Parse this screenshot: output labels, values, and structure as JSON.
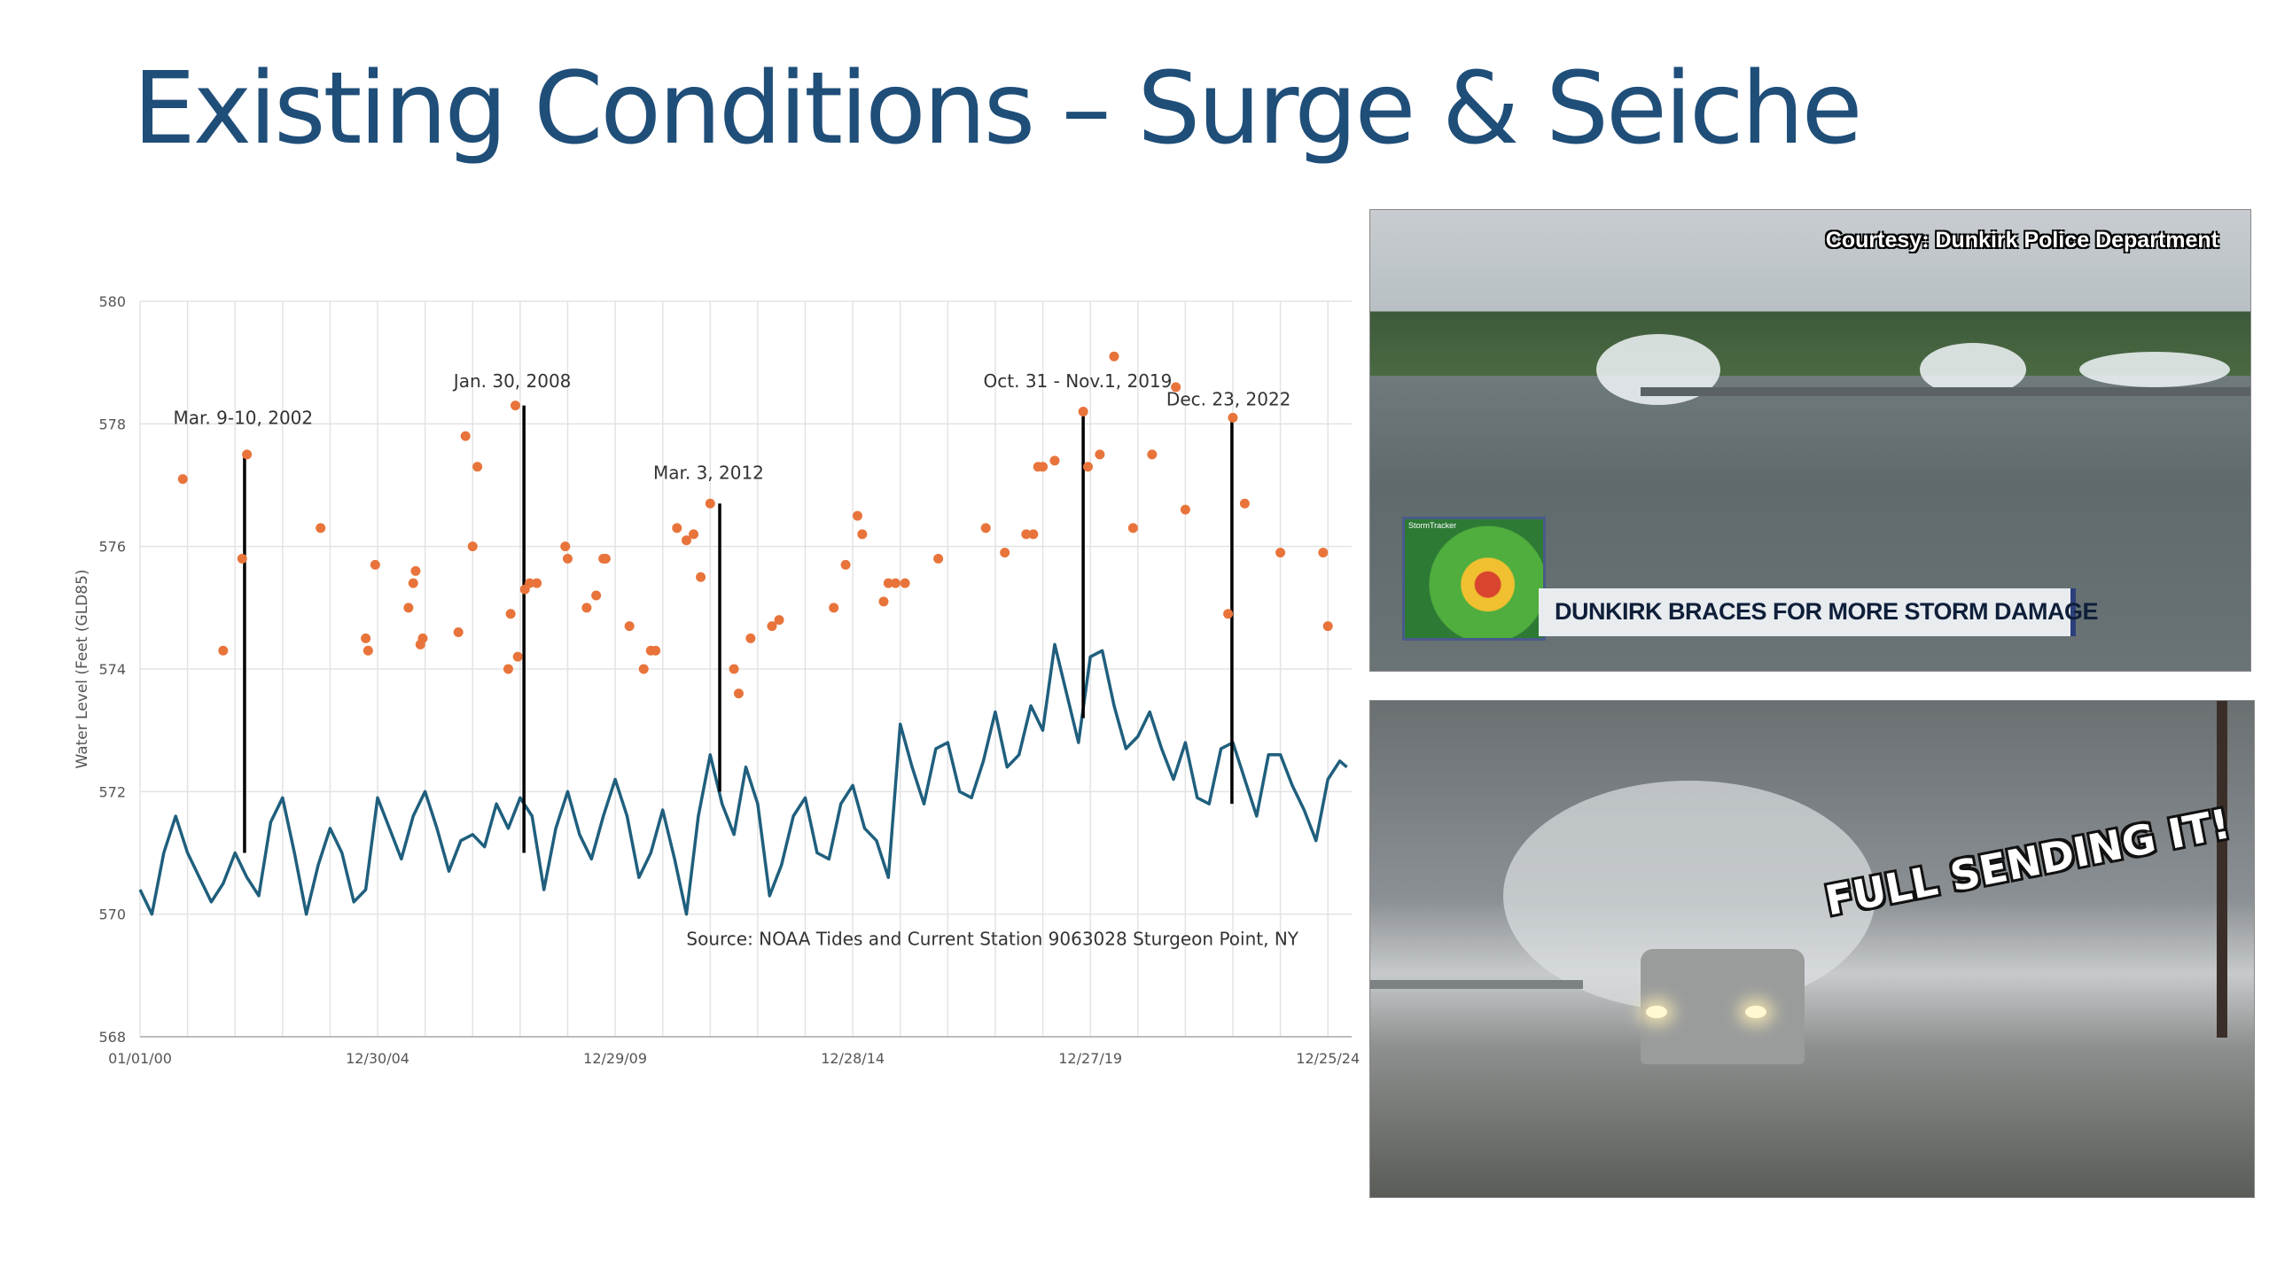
{
  "slide": {
    "title": "Existing Conditions – Surge & Seiche"
  },
  "chart_data": {
    "type": "line",
    "ylabel": "Water Level (Feet (GLD85)",
    "xlabel": "",
    "ylim": [
      568,
      580
    ],
    "yticks": [
      568,
      570,
      572,
      574,
      576,
      578,
      580
    ],
    "x_tick_labels": [
      "01/01/00",
      "12/30/04",
      "12/29/09",
      "12/28/14",
      "12/27/19",
      "12/25/24"
    ],
    "x_tick_years": [
      2000,
      2005,
      2010,
      2015,
      2020,
      2025
    ],
    "xlim": [
      2000,
      2025.5
    ],
    "grid": true,
    "source_note": "Source: NOAA Tides and Current Station 9063028 Sturgeon Point, NY",
    "colors": {
      "line": "#1f5f7d",
      "points": "#e8743b",
      "event": "#000000",
      "grid": "#e3e3e3",
      "axis_text": "#555555"
    },
    "series": [
      {
        "type": "line",
        "x": [
          2000.0,
          2000.25,
          2000.5,
          2000.75,
          2001.0,
          2001.25,
          2001.5,
          2001.75,
          2002.0,
          2002.25,
          2002.5,
          2002.75,
          2003.0,
          2003.25,
          2003.5,
          2003.75,
          2004.0,
          2004.25,
          2004.5,
          2004.75,
          2005.0,
          2005.25,
          2005.5,
          2005.75,
          2006.0,
          2006.25,
          2006.5,
          2006.75,
          2007.0,
          2007.25,
          2007.5,
          2007.75,
          2008.0,
          2008.25,
          2008.5,
          2008.75,
          2009.0,
          2009.25,
          2009.5,
          2009.75,
          2010.0,
          2010.25,
          2010.5,
          2010.75,
          2011.0,
          2011.25,
          2011.5,
          2011.75,
          2012.0,
          2012.25,
          2012.5,
          2012.75,
          2013.0,
          2013.25,
          2013.5,
          2013.75,
          2014.0,
          2014.25,
          2014.5,
          2014.75,
          2015.0,
          2015.25,
          2015.5,
          2015.75,
          2016.0,
          2016.25,
          2016.5,
          2016.75,
          2017.0,
          2017.25,
          2017.5,
          2017.75,
          2018.0,
          2018.25,
          2018.5,
          2018.75,
          2019.0,
          2019.25,
          2019.5,
          2019.75,
          2020.0,
          2020.25,
          2020.5,
          2020.75,
          2021.0,
          2021.25,
          2021.5,
          2021.75,
          2022.0,
          2022.25,
          2022.5,
          2022.75,
          2023.0,
          2023.25,
          2023.5,
          2023.75,
          2024.0,
          2024.25,
          2024.5,
          2024.75,
          2025.0,
          2025.25,
          2025.4
        ],
        "values": [
          570.4,
          570.0,
          571.0,
          571.6,
          571.0,
          570.6,
          570.2,
          570.5,
          571.0,
          570.6,
          570.3,
          571.5,
          571.9,
          571.0,
          570.0,
          570.8,
          571.4,
          571.0,
          570.2,
          570.4,
          571.9,
          571.4,
          570.9,
          571.6,
          572.0,
          571.4,
          570.7,
          571.2,
          571.3,
          571.1,
          571.8,
          571.4,
          571.9,
          571.6,
          570.4,
          571.4,
          572.0,
          571.3,
          570.9,
          571.6,
          572.2,
          571.6,
          570.6,
          571.0,
          571.7,
          570.9,
          570.0,
          571.6,
          572.6,
          571.8,
          571.3,
          572.4,
          571.8,
          570.3,
          570.8,
          571.6,
          571.9,
          571.0,
          570.9,
          571.8,
          572.1,
          571.4,
          571.2,
          570.6,
          573.1,
          572.4,
          571.8,
          572.7,
          572.8,
          572.0,
          571.9,
          572.5,
          573.3,
          572.4,
          572.6,
          573.4,
          573.0,
          574.4,
          573.6,
          572.8,
          574.2,
          574.3,
          573.4,
          572.7,
          572.9,
          573.3,
          572.7,
          572.2,
          572.8,
          571.9,
          571.8,
          572.7,
          572.8,
          572.2,
          571.6,
          572.6,
          572.6,
          572.1,
          571.7,
          571.2,
          572.2,
          572.5,
          572.4
        ]
      },
      {
        "type": "scatter",
        "x": [
          2000.9,
          2001.75,
          2002.15,
          2002.25,
          2003.8,
          2004.75,
          2004.8,
          2004.95,
          2005.65,
          2005.75,
          2005.8,
          2005.9,
          2005.95,
          2006.7,
          2006.85,
          2007.0,
          2007.1,
          2007.75,
          2007.8,
          2007.9,
          2007.95,
          2008.1,
          2008.2,
          2008.35,
          2008.95,
          2009.0,
          2009.4,
          2009.6,
          2009.75,
          2009.8,
          2010.3,
          2010.6,
          2010.75,
          2010.85,
          2011.3,
          2011.5,
          2011.65,
          2011.8,
          2012.0,
          2012.5,
          2012.6,
          2012.85,
          2013.3,
          2013.45,
          2014.6,
          2014.85,
          2015.1,
          2015.2,
          2015.65,
          2015.75,
          2015.9,
          2016.1,
          2016.8,
          2017.8,
          2018.2,
          2018.65,
          2018.8,
          2018.9,
          2019.0,
          2019.25,
          2019.85,
          2019.95,
          2020.2,
          2020.5,
          2020.9,
          2021.3,
          2021.8,
          2022.0,
          2022.9,
          2023.0,
          2023.25,
          2024.0,
          2024.9,
          2025.0
        ],
        "values": [
          577.1,
          574.3,
          575.8,
          577.5,
          576.3,
          574.5,
          574.3,
          575.7,
          575.0,
          575.4,
          575.6,
          574.4,
          574.5,
          574.6,
          577.8,
          576.0,
          577.3,
          574.0,
          574.9,
          578.3,
          574.2,
          575.3,
          575.4,
          575.4,
          576.0,
          575.8,
          575.0,
          575.2,
          575.8,
          575.8,
          574.7,
          574.0,
          574.3,
          574.3,
          576.3,
          576.1,
          576.2,
          575.5,
          576.7,
          574.0,
          573.6,
          574.5,
          574.7,
          574.8,
          575.0,
          575.7,
          576.5,
          576.2,
          575.1,
          575.4,
          575.4,
          575.4,
          575.8,
          576.3,
          575.9,
          576.2,
          576.2,
          577.3,
          577.3,
          577.4,
          578.2,
          577.3,
          577.5,
          579.1,
          576.3,
          577.5,
          578.6,
          576.6,
          574.9,
          578.1,
          576.7,
          575.9,
          575.9,
          574.7
        ]
      }
    ],
    "annotations": [
      {
        "label": "Mar. 9-10, 2002",
        "x": 2002.2,
        "y_top": 577.5,
        "y_bottom": 571.0,
        "label_x": 2000.7,
        "label_y": 578.0
      },
      {
        "label": "Jan. 30, 2008",
        "x": 2008.08,
        "y_top": 578.3,
        "y_bottom": 571.0,
        "label_x": 2006.6,
        "label_y": 578.6
      },
      {
        "label": "Mar. 3, 2012",
        "x": 2012.2,
        "y_top": 576.7,
        "y_bottom": 572.0,
        "label_x": 2010.8,
        "label_y": 577.1
      },
      {
        "label": "Oct. 31 - Nov.1, 2019",
        "x": 2019.85,
        "y_top": 578.2,
        "y_bottom": 573.2,
        "label_x": 2017.75,
        "label_y": 578.6
      },
      {
        "label": "Dec. 23, 2022",
        "x": 2022.98,
        "y_top": 578.1,
        "y_bottom": 571.8,
        "label_x": 2021.6,
        "label_y": 578.3
      }
    ]
  },
  "photos": {
    "photo1_credit": "Courtesy: Dunkirk Police Department",
    "photo1_banner": "DUNKIRK BRACES FOR MORE STORM DAMAGE",
    "photo1_radar_label": "StormTracker",
    "photo2_caption": "FULL SENDING IT!"
  }
}
